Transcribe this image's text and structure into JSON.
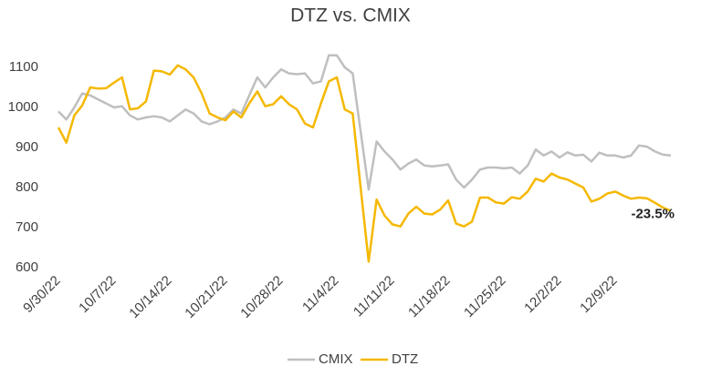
{
  "chart_data": {
    "type": "line",
    "title": "DTZ vs. CMIX",
    "categories": [
      "9/30/22",
      null,
      null,
      null,
      null,
      null,
      null,
      "10/7/22",
      null,
      null,
      null,
      null,
      null,
      null,
      "10/14/22",
      null,
      null,
      null,
      null,
      null,
      null,
      "10/21/22",
      null,
      null,
      null,
      null,
      null,
      null,
      "10/28/22",
      null,
      null,
      null,
      null,
      null,
      null,
      "11/4/22",
      null,
      null,
      null,
      null,
      null,
      null,
      "11/11/22",
      null,
      null,
      null,
      null,
      null,
      null,
      "11/18/22",
      null,
      null,
      null,
      null,
      null,
      null,
      "11/25/22",
      null,
      null,
      null,
      null,
      null,
      null,
      "12/2/22",
      null,
      null,
      null,
      null,
      null,
      null,
      "12/9/22",
      null,
      null,
      null,
      null,
      null,
      null,
      null
    ],
    "series": [
      {
        "name": "CMIX",
        "color": "#bfbfbf",
        "values": [
          990,
          970,
          1000,
          1035,
          1030,
          1020,
          1010,
          1000,
          1003,
          980,
          970,
          975,
          978,
          975,
          965,
          980,
          995,
          985,
          965,
          958,
          965,
          975,
          995,
          985,
          1030,
          1075,
          1050,
          1075,
          1095,
          1085,
          1083,
          1085,
          1060,
          1065,
          1130,
          1130,
          1100,
          1085,
          940,
          795,
          915,
          890,
          870,
          845,
          860,
          870,
          855,
          853,
          855,
          858,
          820,
          800,
          820,
          845,
          850,
          850,
          848,
          850,
          835,
          855,
          895,
          880,
          890,
          875,
          888,
          880,
          882,
          865,
          887,
          880,
          880,
          875,
          880,
          905,
          902,
          890,
          882,
          880
        ]
      },
      {
        "name": "DTZ",
        "color": "#f5b800",
        "values": [
          950,
          912,
          980,
          1005,
          1050,
          1047,
          1048,
          1062,
          1075,
          995,
          998,
          1015,
          1092,
          1090,
          1082,
          1105,
          1095,
          1075,
          1035,
          985,
          975,
          968,
          990,
          975,
          1010,
          1040,
          1003,
          1008,
          1028,
          1008,
          995,
          960,
          950,
          1010,
          1065,
          1075,
          995,
          985,
          800,
          615,
          770,
          730,
          708,
          703,
          735,
          752,
          735,
          733,
          745,
          768,
          710,
          703,
          715,
          775,
          775,
          763,
          760,
          776,
          772,
          790,
          822,
          815,
          835,
          825,
          820,
          810,
          800,
          765,
          772,
          785,
          790,
          780,
          772,
          775,
          773,
          762,
          750,
          742
        ]
      }
    ],
    "annotation": "-23.5%",
    "ylim": [
      600,
      1150
    ],
    "yticks": [
      600,
      700,
      800,
      900,
      1000,
      1100
    ],
    "grid": false,
    "legend": "bottom"
  }
}
